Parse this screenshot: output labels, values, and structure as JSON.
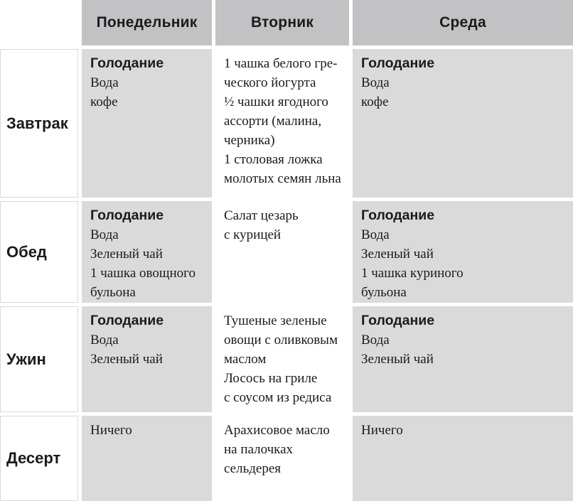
{
  "table": {
    "corner": "",
    "columns": [
      "Понедельник",
      "Вторник",
      "Среда"
    ],
    "rows": [
      {
        "label": "Завтрак",
        "cells": [
          {
            "shaded": true,
            "lines": [
              {
                "t": "Голодание",
                "b": true
              },
              {
                "t": "Вода"
              },
              {
                "t": "кофе"
              }
            ]
          },
          {
            "shaded": false,
            "lines": [
              {
                "t": "1 чашка белого гре-"
              },
              {
                "t": "ческого йогурта"
              },
              {
                "t": "½ чашки ягодного"
              },
              {
                "t": "ассорти (малина,"
              },
              {
                "t": "черника)"
              },
              {
                "t": "1 столовая ложка"
              },
              {
                "t": "молотых семян льна"
              }
            ]
          },
          {
            "shaded": true,
            "lines": [
              {
                "t": "Голодание",
                "b": true
              },
              {
                "t": "Вода"
              },
              {
                "t": "кофе"
              }
            ]
          }
        ]
      },
      {
        "label": "Обед",
        "cells": [
          {
            "shaded": true,
            "lines": [
              {
                "t": "Голодание",
                "b": true
              },
              {
                "t": "Вода"
              },
              {
                "t": "Зеленый чай"
              },
              {
                "t": "1 чашка овощного"
              },
              {
                "t": "бульона"
              }
            ]
          },
          {
            "shaded": false,
            "lines": [
              {
                "t": "Салат цезарь"
              },
              {
                "t": "с курицей"
              }
            ]
          },
          {
            "shaded": true,
            "lines": [
              {
                "t": "Голодание",
                "b": true
              },
              {
                "t": "Вода"
              },
              {
                "t": "Зеленый чай"
              },
              {
                "t": "1 чашка куриного"
              },
              {
                "t": "бульона"
              }
            ]
          }
        ]
      },
      {
        "label": "Ужин",
        "cells": [
          {
            "shaded": true,
            "lines": [
              {
                "t": "Голодание",
                "b": true
              },
              {
                "t": "Вода"
              },
              {
                "t": "Зеленый чай"
              }
            ]
          },
          {
            "shaded": false,
            "lines": [
              {
                "t": "Тушеные зеленые"
              },
              {
                "t": "овощи с оливковым"
              },
              {
                "t": "маслом"
              },
              {
                "t": "Лосось на гриле"
              },
              {
                "t": "с соусом из редиса"
              }
            ]
          },
          {
            "shaded": true,
            "lines": [
              {
                "t": "Голодание",
                "b": true
              },
              {
                "t": "Вода"
              },
              {
                "t": "Зеленый чай"
              }
            ]
          }
        ]
      },
      {
        "label": "Десерт",
        "cells": [
          {
            "shaded": true,
            "lines": [
              {
                "t": "Ничего"
              }
            ]
          },
          {
            "shaded": false,
            "lines": [
              {
                "t": "Арахисовое масло"
              },
              {
                "t": "на палочках"
              },
              {
                "t": "сельдерея"
              }
            ]
          },
          {
            "shaded": true,
            "lines": [
              {
                "t": "Ничего"
              }
            ]
          }
        ]
      }
    ],
    "colors": {
      "header_bg": "#c2c2c4",
      "shaded_bg": "#dadada",
      "label_border": "#d9d9d9",
      "text_color": "#1b1b1b"
    }
  },
  "chart_data": {
    "type": "table",
    "title": "",
    "columns": [
      "",
      "Понедельник",
      "Вторник",
      "Среда"
    ],
    "rows": [
      [
        "Завтрак",
        "Голодание; Вода; кофе",
        "1 чашка белого греческого йогурта; ½ чашки ягодного ассорти (малина, черника); 1 столовая ложка молотых семян льна",
        "Голодание; Вода; кофе"
      ],
      [
        "Обед",
        "Голодание; Вода; Зеленый чай; 1 чашка овощного бульона",
        "Салат цезарь с курицей",
        "Голодание; Вода; Зеленый чай; 1 чашка куриного бульона"
      ],
      [
        "Ужин",
        "Голодание; Вода; Зеленый чай",
        "Тушеные зеленые овощи с оливковым маслом; Лосось на гриле с соусом из редиса",
        "Голодание; Вода; Зеленый чай"
      ],
      [
        "Десерт",
        "Ничего",
        "Арахисовое масло на палочках сельдерея",
        "Ничего"
      ]
    ]
  }
}
